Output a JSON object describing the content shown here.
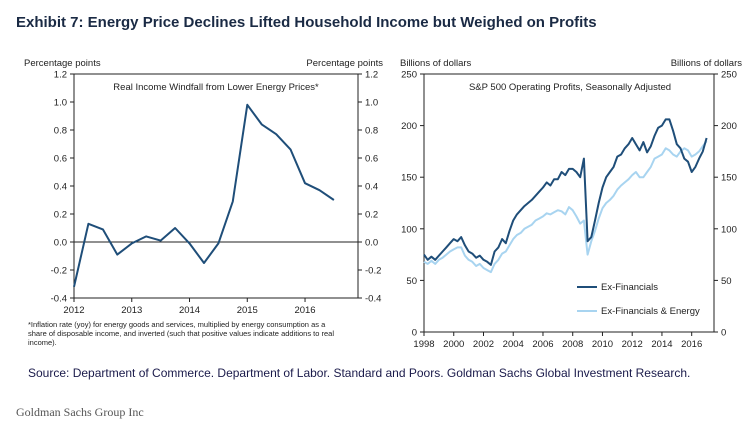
{
  "exhibit_title": "Exhibit 7: Energy Price Declines Lifted Household Income but Weighed on Profits",
  "source": "Source: Department of Commerce. Department of Labor. Standard and Poors. Goldman Sachs Global Investment Research.",
  "credit": "Goldman Sachs Group Inc",
  "chart_data": [
    {
      "type": "line",
      "title": "Real Income Windfall from Lower Energy Prices*",
      "ylabel_left": "Percentage points",
      "ylabel_right": "Percentage points",
      "ylim": [
        -0.4,
        1.2
      ],
      "yticks": [
        1.2,
        1.0,
        0.8,
        0.6,
        0.4,
        0.2,
        0.0,
        -0.2,
        -0.4
      ],
      "ytick_labels_left": [
        "1.2",
        "1.0",
        "0.8",
        "0.6",
        "0.4",
        "0.2",
        "0.0",
        "-0.2",
        "-0.4"
      ],
      "ytick_labels_right": [
        "1.2",
        "1.0",
        "0.8",
        "0.6",
        "0.4",
        "0.2",
        "0.0",
        "-0.2",
        "-0.4"
      ],
      "xlim": [
        2012,
        2016.917
      ],
      "xticks": [
        2012,
        2013,
        2014,
        2015,
        2016
      ],
      "xtick_labels": [
        "2012",
        "2013",
        "2014",
        "2015",
        "2016"
      ],
      "footnote": "*Inflation rate (yoy) for energy goods and services, multiplied by energy consumption as a share of disposable income, and inverted (such that positive values indicate additions to real income).",
      "series": [
        {
          "name": "Real Income Windfall",
          "color": "#1f4e79",
          "x": [
            2012.0,
            2012.25,
            2012.5,
            2012.75,
            2013.0,
            2013.25,
            2013.5,
            2013.75,
            2014.0,
            2014.25,
            2014.5,
            2014.75,
            2015.0,
            2015.25,
            2015.5,
            2015.75,
            2016.0,
            2016.25,
            2016.5
          ],
          "values": [
            -0.32,
            0.13,
            0.09,
            -0.09,
            -0.01,
            0.04,
            0.01,
            0.1,
            -0.01,
            -0.15,
            -0.01,
            0.29,
            0.98,
            0.84,
            0.77,
            0.66,
            0.42,
            0.37,
            0.3
          ]
        }
      ]
    },
    {
      "type": "line",
      "title": "S&P 500 Operating Profits, Seasonally Adjusted",
      "ylabel_left": "Billions of dollars",
      "ylabel_right": "Billions of dollars",
      "ylim": [
        0,
        250
      ],
      "yticks": [
        250,
        200,
        150,
        100,
        50,
        0
      ],
      "ytick_labels_left": [
        "250",
        "200",
        "150",
        "100",
        "50",
        "0"
      ],
      "ytick_labels_right": [
        "250",
        "200",
        "150",
        "100",
        "50",
        "0"
      ],
      "xlim": [
        1998,
        2017.5
      ],
      "xticks": [
        1998,
        2000,
        2002,
        2004,
        2006,
        2008,
        2010,
        2012,
        2014,
        2016
      ],
      "xtick_labels": [
        "1998",
        "2000",
        "2002",
        "2004",
        "2006",
        "2008",
        "2010",
        "2012",
        "2014",
        "2016"
      ],
      "legend_position": "bottom-right",
      "series": [
        {
          "name": "Ex-Financials",
          "color": "#1f4e79",
          "x": [
            1998.0,
            1998.25,
            1998.5,
            1998.75,
            1999.0,
            1999.25,
            1999.5,
            1999.75,
            2000.0,
            2000.25,
            2000.5,
            2000.75,
            2001.0,
            2001.25,
            2001.5,
            2001.75,
            2002.0,
            2002.25,
            2002.5,
            2002.75,
            2003.0,
            2003.25,
            2003.5,
            2003.75,
            2004.0,
            2004.25,
            2004.5,
            2004.75,
            2005.0,
            2005.25,
            2005.5,
            2005.75,
            2006.0,
            2006.25,
            2006.5,
            2006.75,
            2007.0,
            2007.25,
            2007.5,
            2007.75,
            2008.0,
            2008.25,
            2008.5,
            2008.75,
            2009.0,
            2009.25,
            2009.5,
            2009.75,
            2010.0,
            2010.25,
            2010.5,
            2010.75,
            2011.0,
            2011.25,
            2011.5,
            2011.75,
            2012.0,
            2012.25,
            2012.5,
            2012.75,
            2013.0,
            2013.25,
            2013.5,
            2013.75,
            2014.0,
            2014.25,
            2014.5,
            2014.75,
            2015.0,
            2015.25,
            2015.5,
            2015.75,
            2016.0,
            2016.25,
            2016.5,
            2016.75,
            2017.0
          ],
          "values": [
            75,
            70,
            73,
            70,
            74,
            78,
            82,
            86,
            90,
            88,
            92,
            84,
            78,
            76,
            72,
            74,
            70,
            68,
            65,
            78,
            82,
            90,
            86,
            98,
            108,
            114,
            118,
            122,
            125,
            128,
            132,
            136,
            140,
            145,
            142,
            148,
            148,
            155,
            152,
            158,
            158,
            155,
            150,
            168,
            88,
            92,
            108,
            125,
            140,
            150,
            155,
            160,
            170,
            172,
            178,
            182,
            188,
            182,
            176,
            184,
            174,
            180,
            190,
            198,
            200,
            206,
            206,
            195,
            182,
            178,
            168,
            165,
            155,
            160,
            168,
            175,
            188
          ]
        },
        {
          "name": "Ex-Financials & Energy",
          "color": "#a8d4f0",
          "x": [
            1998.0,
            1998.25,
            1998.5,
            1998.75,
            1999.0,
            1999.25,
            1999.5,
            1999.75,
            2000.0,
            2000.25,
            2000.5,
            2000.75,
            2001.0,
            2001.25,
            2001.5,
            2001.75,
            2002.0,
            2002.25,
            2002.5,
            2002.75,
            2003.0,
            2003.25,
            2003.5,
            2003.75,
            2004.0,
            2004.25,
            2004.5,
            2004.75,
            2005.0,
            2005.25,
            2005.5,
            2005.75,
            2006.0,
            2006.25,
            2006.5,
            2006.75,
            2007.0,
            2007.25,
            2007.5,
            2007.75,
            2008.0,
            2008.25,
            2008.5,
            2008.75,
            2009.0,
            2009.25,
            2009.5,
            2009.75,
            2010.0,
            2010.25,
            2010.5,
            2010.75,
            2011.0,
            2011.25,
            2011.5,
            2011.75,
            2012.0,
            2012.25,
            2012.5,
            2012.75,
            2013.0,
            2013.25,
            2013.5,
            2013.75,
            2014.0,
            2014.25,
            2014.5,
            2014.75,
            2015.0,
            2015.25,
            2015.5,
            2015.75,
            2016.0,
            2016.25,
            2016.5,
            2016.75,
            2017.0
          ],
          "values": [
            68,
            66,
            69,
            66,
            70,
            72,
            75,
            78,
            80,
            82,
            82,
            74,
            70,
            68,
            64,
            66,
            62,
            60,
            58,
            66,
            70,
            76,
            78,
            84,
            90,
            94,
            96,
            100,
            102,
            104,
            108,
            110,
            112,
            115,
            114,
            116,
            118,
            117,
            114,
            121,
            118,
            112,
            105,
            108,
            75,
            88,
            98,
            110,
            120,
            125,
            128,
            132,
            138,
            142,
            145,
            148,
            152,
            155,
            150,
            150,
            155,
            160,
            168,
            170,
            172,
            178,
            176,
            172,
            170,
            175,
            178,
            176,
            170,
            172,
            175,
            180,
            185
          ]
        }
      ]
    }
  ]
}
